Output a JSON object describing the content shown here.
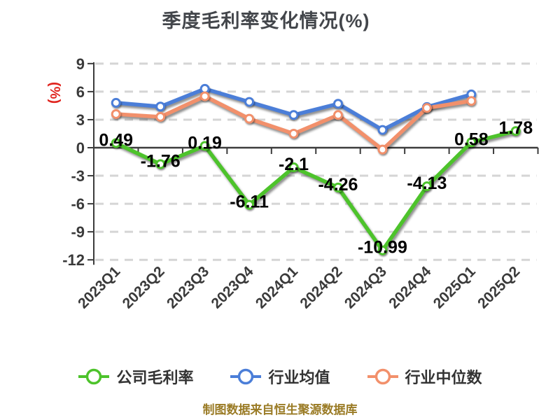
{
  "chart_data": {
    "type": "line",
    "title": "季度毛利率变化情况(%)",
    "y_axis_unit": "(%)",
    "categories": [
      "2023Q1",
      "2023Q2",
      "2023Q3",
      "2023Q4",
      "2024Q1",
      "2024Q2",
      "2024Q3",
      "2024Q4",
      "2025Q1",
      "2025Q2"
    ],
    "series": [
      {
        "name": "公司毛利率",
        "color": "#4dc32b",
        "values": [
          0.49,
          -1.76,
          0.19,
          -6.11,
          -2.1,
          -4.26,
          -10.99,
          -4.13,
          0.58,
          1.78
        ],
        "labels": [
          "0.49",
          "-1.76",
          "0.19",
          "-6.11",
          "-2.1",
          "-4.26",
          "-10.99",
          "-4.13",
          "0.58",
          "1.78"
        ],
        "show_labels": true
      },
      {
        "name": "行业均值",
        "color": "#4b7ed8",
        "values": [
          4.8,
          4.4,
          6.3,
          4.9,
          3.5,
          4.7,
          1.9,
          4.35,
          5.7,
          null
        ],
        "show_labels": false
      },
      {
        "name": "行业中位数",
        "color": "#f2906b",
        "values": [
          3.6,
          3.3,
          5.5,
          3.1,
          1.5,
          3.5,
          -0.2,
          4.25,
          5.0,
          null
        ],
        "show_labels": false
      }
    ],
    "yticks": [
      9,
      6,
      3,
      0,
      -3,
      -6,
      -9,
      -12
    ],
    "ylim": [
      -12,
      9
    ],
    "grid": "dashed horizontal",
    "legend_position": "bottom"
  },
  "colors": {
    "grid_line": "#d5d5d5",
    "axis_line": "#3c3c3c",
    "tick_text": "#3a3a3a",
    "value_label_text": "#000000",
    "title_text": "#43464b",
    "unit_text": "#e0251f",
    "source_text": "#9a7b25",
    "background": "#ffffff"
  },
  "footer": {
    "source_text": "制图数据来自恒生聚源数据库"
  }
}
